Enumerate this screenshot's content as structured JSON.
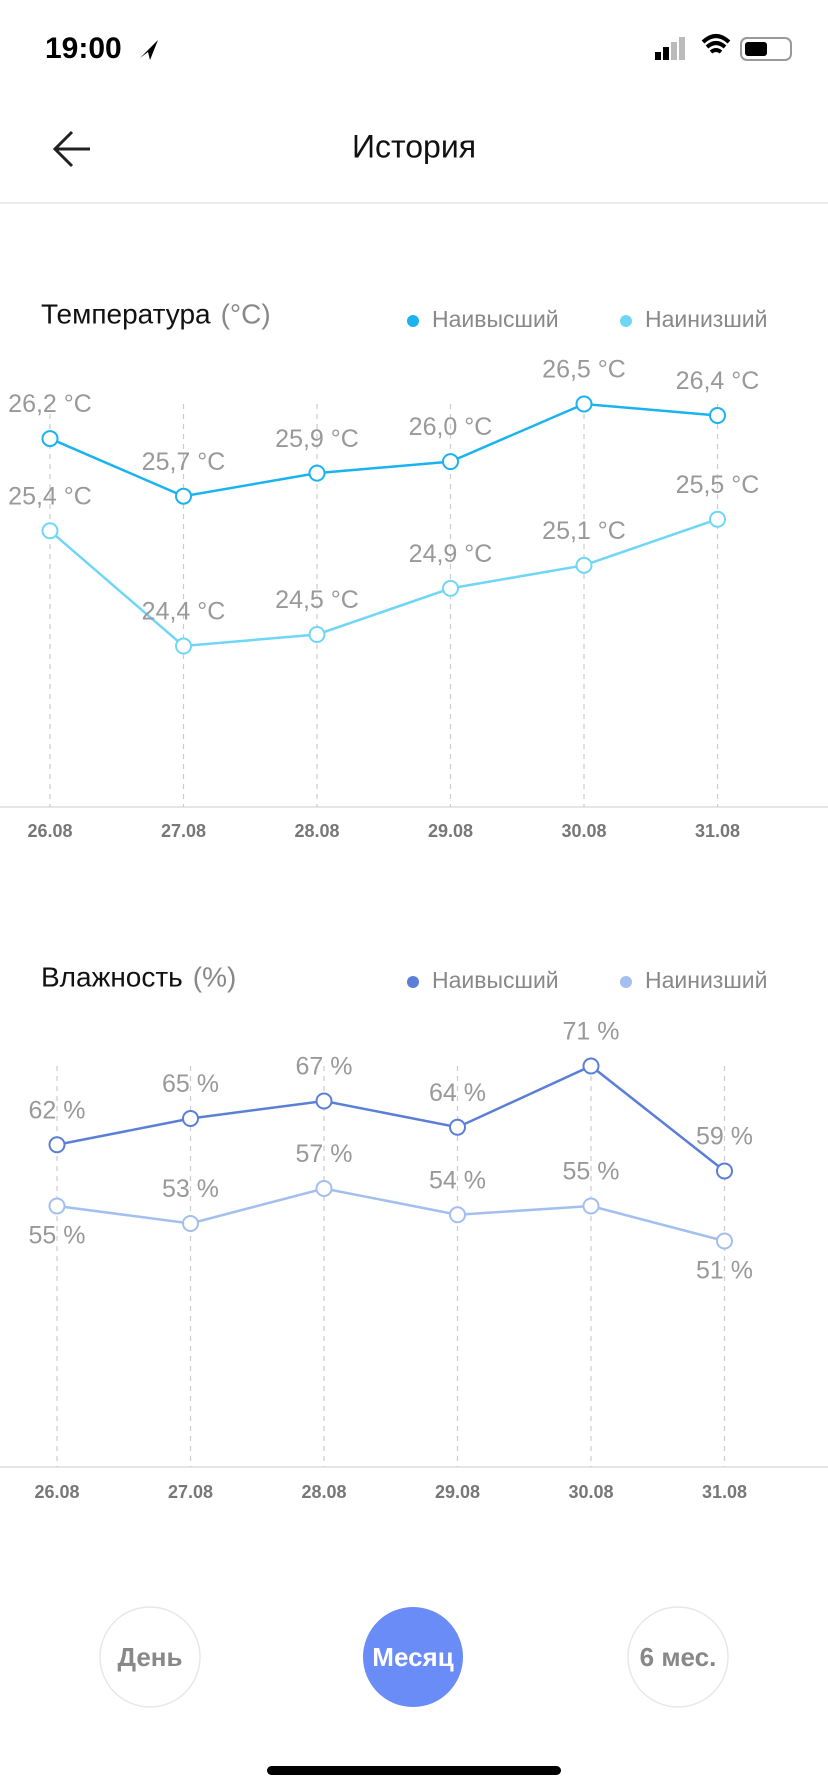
{
  "status_bar": {
    "time": "19:00"
  },
  "header": {
    "title": "История"
  },
  "chart_data": [
    {
      "type": "line",
      "title": "Температура",
      "unit": "(°C)",
      "categories": [
        "26.08",
        "27.08",
        "28.08",
        "29.08",
        "30.08",
        "31.08"
      ],
      "series": [
        {
          "name": "Наивысший",
          "color": "#1ab3ef",
          "values": [
            26.2,
            25.7,
            25.9,
            26.0,
            26.5,
            26.4
          ],
          "value_labels": [
            "26,2 °C",
            "25,7 °C",
            "25,9 °C",
            "26,0 °C",
            "26,5 °C",
            "26,4 °C"
          ]
        },
        {
          "name": "Наинизший",
          "color": "#6fd6f5",
          "values": [
            25.4,
            24.4,
            24.5,
            24.9,
            25.1,
            25.5
          ],
          "value_labels": [
            "25,4 °C",
            "24,4 °C",
            "24,5 °C",
            "24,9 °C",
            "25,1 °C",
            "25,5 °C"
          ]
        }
      ]
    },
    {
      "type": "line",
      "title": "Влажность",
      "unit": "(%)",
      "categories": [
        "26.08",
        "27.08",
        "28.08",
        "29.08",
        "30.08",
        "31.08"
      ],
      "series": [
        {
          "name": "Наивысший",
          "color": "#5b7fd6",
          "values": [
            62,
            65,
            67,
            64,
            71,
            59
          ],
          "value_labels": [
            "62 %",
            "65 %",
            "67 %",
            "64 %",
            "71 %",
            "59 %"
          ]
        },
        {
          "name": "Наинизший",
          "color": "#a3bff0",
          "values": [
            55,
            53,
            57,
            54,
            55,
            51
          ],
          "value_labels": [
            "55 %",
            "53 %",
            "57 %",
            "54 %",
            "55 %",
            "51 %"
          ]
        }
      ]
    }
  ],
  "tabs": [
    "День",
    "Месяц",
    "6 мес."
  ],
  "selected_tab": 1
}
